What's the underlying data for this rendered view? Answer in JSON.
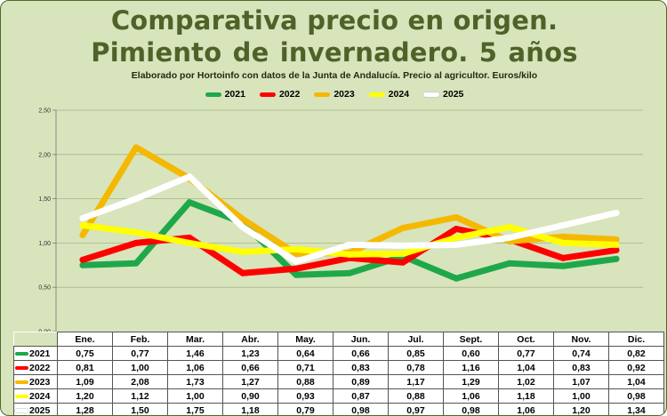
{
  "title_line1": "Comparativa precio en origen.",
  "title_line2": "Pimiento de invernadero.  5 años",
  "subtitle": "Elaborado por Hortoinfo con datos de la Junta de Andalucía. Precio al agricultor. Euros/kilo",
  "chart_data": {
    "type": "line",
    "categories": [
      "Ene.",
      "Feb.",
      "Mar.",
      "Abr.",
      "May.",
      "Jun.",
      "Jul.",
      "Sept.",
      "Oct.",
      "Nov.",
      "Dic."
    ],
    "ylim": [
      0,
      2.5
    ],
    "yticks": [
      "0,00",
      "0,50",
      "1,00",
      "1,50",
      "2,00",
      "2,50"
    ],
    "grid": true,
    "legend_position": "top",
    "series": [
      {
        "name": "2021",
        "color": "#1fa84a",
        "values": [
          0.75,
          0.77,
          1.46,
          1.23,
          0.64,
          0.66,
          0.85,
          0.6,
          0.77,
          0.74,
          0.82
        ],
        "labels": [
          "0,75",
          "0,77",
          "1,46",
          "1,23",
          "0,64",
          "0,66",
          "0,85",
          "0,60",
          "0,77",
          "0,74",
          "0,82"
        ]
      },
      {
        "name": "2022",
        "color": "#ff0000",
        "values": [
          0.81,
          1.0,
          1.06,
          0.66,
          0.71,
          0.83,
          0.78,
          1.16,
          1.04,
          0.83,
          0.92
        ],
        "labels": [
          "0,81",
          "1,00",
          "1,06",
          "0,66",
          "0,71",
          "0,83",
          "0,78",
          "1,16",
          "1,04",
          "0,83",
          "0,92"
        ]
      },
      {
        "name": "2023",
        "color": "#f5b800",
        "values": [
          1.09,
          2.08,
          1.73,
          1.27,
          0.88,
          0.89,
          1.17,
          1.29,
          1.02,
          1.07,
          1.04
        ],
        "labels": [
          "1,09",
          "2,08",
          "1,73",
          "1,27",
          "0,88",
          "0,89",
          "1,17",
          "1,29",
          "1,02",
          "1,07",
          "1,04"
        ]
      },
      {
        "name": "2024",
        "color": "#ffff00",
        "values": [
          1.2,
          1.12,
          1.0,
          0.9,
          0.93,
          0.87,
          0.88,
          1.06,
          1.18,
          1.0,
          0.98
        ],
        "labels": [
          "1,20",
          "1,12",
          "1,00",
          "0,90",
          "0,93",
          "0,87",
          "0,88",
          "1,06",
          "1,18",
          "1,00",
          "0,98"
        ]
      },
      {
        "name": "2025",
        "color": "#ffffff",
        "values": [
          1.28,
          1.5,
          1.75,
          1.18,
          0.79,
          0.98,
          0.97,
          0.98,
          1.06,
          1.2,
          1.34
        ],
        "labels": [
          "1,28",
          "1,50",
          "1,75",
          "1,18",
          "0,79",
          "0,98",
          "0,97",
          "0,98",
          "1,06",
          "1,20",
          "1,34"
        ]
      }
    ]
  }
}
